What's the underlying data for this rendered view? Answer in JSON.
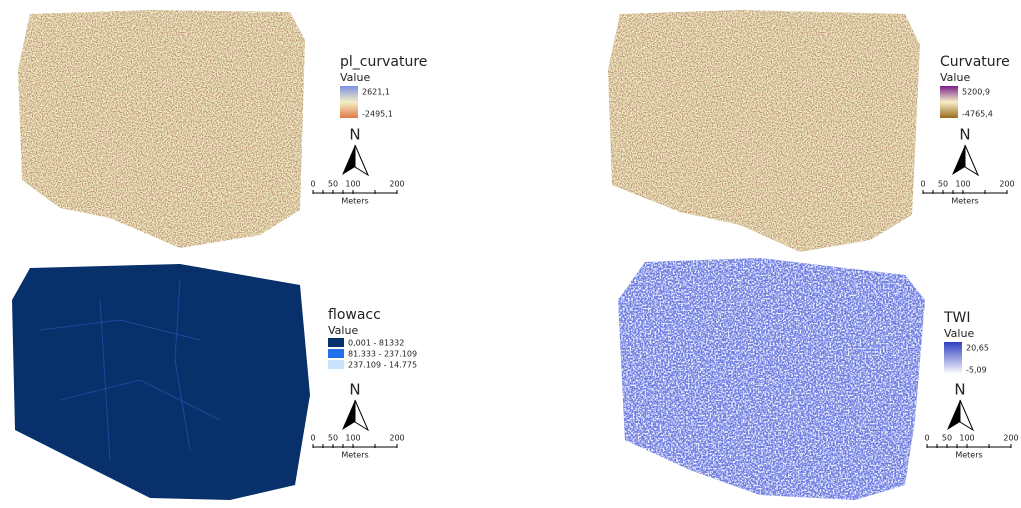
{
  "panels": [
    {
      "title": "pl_curvature",
      "value_label": "Value",
      "legend": [
        "2621,1",
        "-2495,1"
      ],
      "north": "N",
      "scale": {
        "ticks": [
          "0",
          "50",
          "100",
          "200"
        ],
        "unit": "Meters"
      }
    },
    {
      "title": "Curvature",
      "value_label": "Value",
      "legend": [
        "5200,9",
        "-4765,4"
      ],
      "north": "N",
      "scale": {
        "ticks": [
          "0",
          "50",
          "100",
          "200"
        ],
        "unit": "Meters"
      }
    },
    {
      "title": "flowacc",
      "value_label": "Value",
      "legend": [
        "0,001 - 81332",
        "81.333 - 237.109",
        "237.109 - 14.775"
      ],
      "north": "N",
      "scale": {
        "ticks": [
          "0",
          "50",
          "100",
          "200"
        ],
        "unit": "Meters"
      }
    },
    {
      "title": "TWI",
      "value_label": "Value",
      "legend": [
        "20,65",
        "-5,09"
      ],
      "north": "N",
      "scale": {
        "ticks": [
          "0",
          "50",
          "100",
          "200"
        ],
        "unit": "Meters"
      }
    }
  ]
}
